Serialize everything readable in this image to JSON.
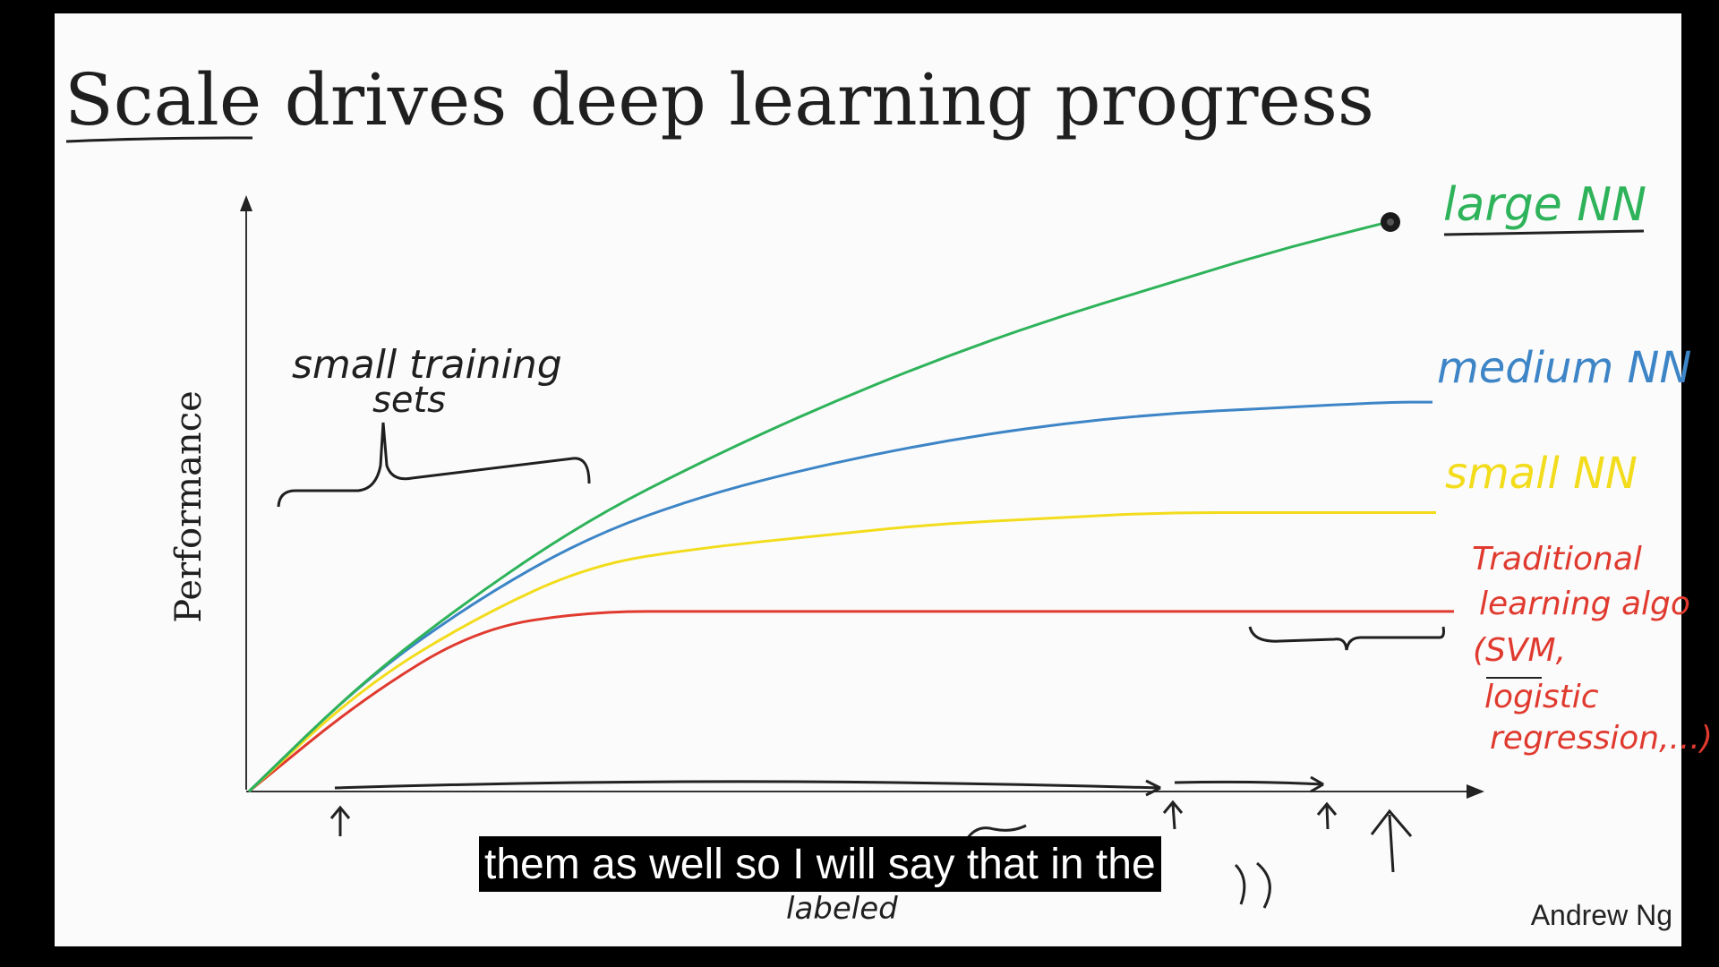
{
  "slide": {
    "title": "Scale drives deep learning progress",
    "author": "Andrew Ng",
    "colors": {
      "background": "#000000",
      "slide": "#fbfbfb",
      "large_nn": "#2eb35a",
      "medium_nn": "#3d85c6",
      "small_nn": "#f2dc1c",
      "traditional": "#e03a2f",
      "ink": "#222222"
    }
  },
  "chart_data": {
    "type": "line",
    "ylabel": "Performance",
    "xlabel": "",
    "x": [
      0,
      1,
      2,
      3,
      4,
      5,
      6,
      7,
      8,
      9,
      10
    ],
    "series": [
      {
        "name": "large NN",
        "values": [
          0,
          19,
          34,
          47,
          57,
          66,
          74,
          81,
          87,
          93,
          98
        ]
      },
      {
        "name": "medium NN",
        "values": [
          0,
          19,
          33,
          44,
          51,
          56,
          60,
          63,
          65,
          66,
          67
        ]
      },
      {
        "name": "small NN",
        "values": [
          0,
          18,
          30,
          39,
          42,
          44,
          46,
          47,
          48,
          48,
          48
        ]
      },
      {
        "name": "Traditional learning algo (SVM, logistic regression,...)",
        "values": [
          0,
          16,
          28,
          31,
          31,
          31,
          31,
          31,
          31,
          31,
          31
        ]
      }
    ],
    "labels": {
      "large": "large NN",
      "medium": "medium NN",
      "small": "small NN",
      "traditional": [
        "Traditional",
        "learning algo",
        "(SVM,",
        "logistic",
        "regression,...)"
      ]
    },
    "annotations": {
      "small_sets": [
        "small training",
        "sets"
      ],
      "x_partial": "labeled"
    }
  },
  "caption": {
    "text": "them as well so I will say that in the"
  }
}
